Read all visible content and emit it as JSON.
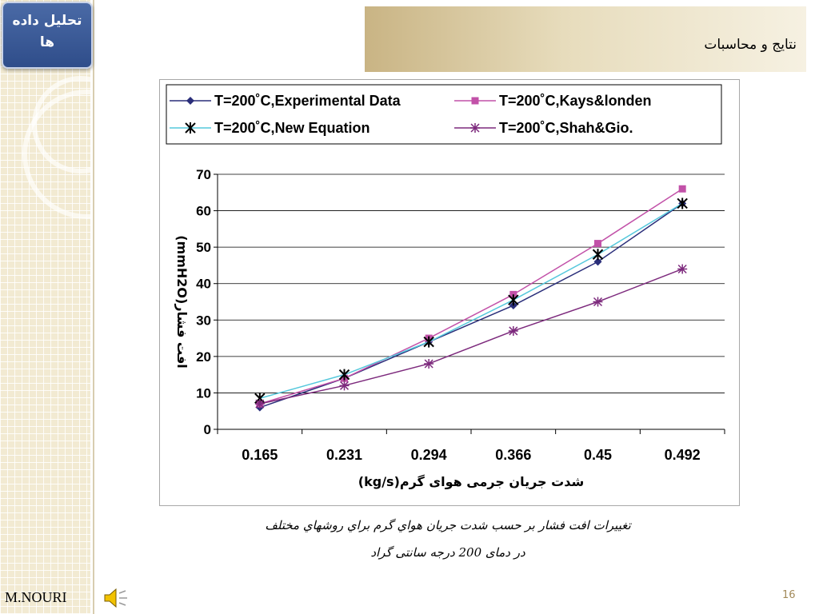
{
  "slide": {
    "corner_button_line1": "تحليل داده",
    "corner_button_line2": "ها",
    "title": "نتايج و محاسبات",
    "caption_line1": "تغييرات افت فشار بر حسب شدت جريان هواي گرم براي روشهاي مختلف",
    "caption_line2": "در دمای 200 درجه سانتی گراد",
    "footer_name": "M.NOURI",
    "slide_number": "16",
    "speaker_icon": "speaker-icon",
    "colors": {
      "corner_button": "#3b5a9a",
      "title_bar_left": "#c9b484",
      "title_bar_right": "#f6f1e2",
      "left_strip": "#f2ead2"
    }
  },
  "chart_data": {
    "type": "line",
    "categories": [
      "0.165",
      "0.231",
      "0.294",
      "0.366",
      "0.45",
      "0.492"
    ],
    "xlabel": "شدت جريان جرمی هوای گرم(kg/s)",
    "ylabel": "افت فشار(mmH2O)",
    "ylim": [
      0,
      70
    ],
    "yticks": [
      0,
      10,
      20,
      30,
      40,
      50,
      60,
      70
    ],
    "grid": "horizontal",
    "legend_position": "top",
    "series": [
      {
        "name": "T=200˚C,Experimental Data",
        "color": "#2a2e7a",
        "marker": "diamond",
        "values": [
          6,
          14,
          24,
          34,
          46,
          62
        ]
      },
      {
        "name": "T=200˚C,Kays&londen",
        "color": "#c251a8",
        "marker": "square",
        "values": [
          7,
          14,
          25,
          37,
          51,
          66
        ]
      },
      {
        "name": "T=200˚C,New Equation",
        "color": "#55c8dc",
        "marker": "star",
        "values": [
          8.5,
          15,
          24,
          35.5,
          48,
          62
        ]
      },
      {
        "name": "T=200˚C,Shah&Gio.",
        "color": "#7d2a7d",
        "marker": "asterisk",
        "values": [
          7,
          12,
          18,
          27,
          35,
          44
        ]
      }
    ]
  }
}
